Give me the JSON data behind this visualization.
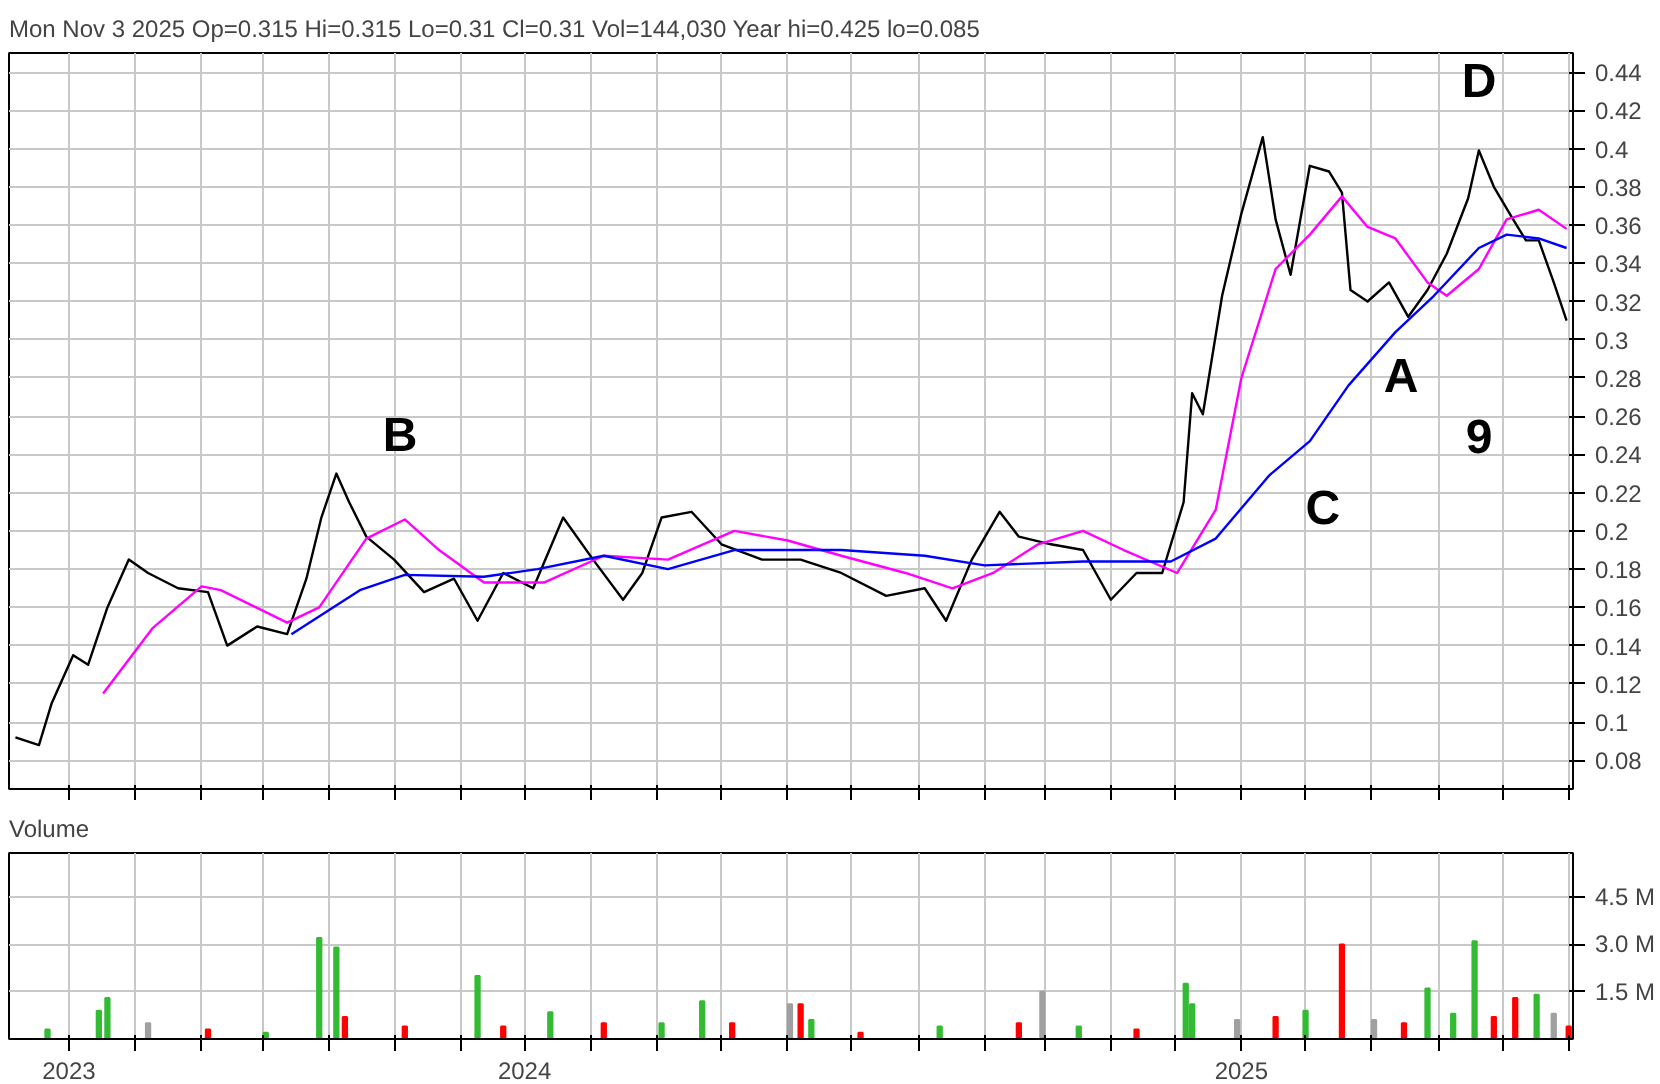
{
  "chart_data": [
    {
      "type": "line",
      "title": "Mon Nov  3 2025  Op=0.315  Hi=0.315  Lo=0.31  Cl=0.31  Vol=144,030  Year hi=0.425  lo=0.085",
      "xlim": [
        "2023-11-03",
        "2025-11-03"
      ],
      "ylim": [
        0.065,
        0.45
      ],
      "xticks": [
        {
          "value": "2023-12-01",
          "label": null
        },
        {
          "value": "2024-01-01",
          "label": null
        },
        {
          "value": "2024-02-01",
          "label": null
        },
        {
          "value": "2024-03-01",
          "label": null
        },
        {
          "value": "2024-04-01",
          "label": null
        },
        {
          "value": "2024-05-01",
          "label": null
        },
        {
          "value": "2024-06-01",
          "label": null
        },
        {
          "value": "2024-07-01",
          "label": null
        },
        {
          "value": "2024-08-01",
          "label": null
        },
        {
          "value": "2024-09-01",
          "label": null
        },
        {
          "value": "2024-10-01",
          "label": null
        },
        {
          "value": "2024-11-01",
          "label": null
        },
        {
          "value": "2024-12-01",
          "label": null
        },
        {
          "value": "2025-01-01",
          "label": null
        },
        {
          "value": "2025-02-01",
          "label": null
        },
        {
          "value": "2025-03-01",
          "label": null
        },
        {
          "value": "2025-04-01",
          "label": null
        },
        {
          "value": "2025-05-01",
          "label": null
        },
        {
          "value": "2025-06-01",
          "label": null
        },
        {
          "value": "2025-07-01",
          "label": null
        },
        {
          "value": "2025-08-01",
          "label": null
        },
        {
          "value": "2025-09-01",
          "label": null
        },
        {
          "value": "2025-10-01",
          "label": null
        },
        {
          "value": "2025-11-01",
          "label": null
        }
      ],
      "yticks": [
        0.08,
        0.1,
        0.12,
        0.14,
        0.16,
        0.18,
        0.2,
        0.22,
        0.24,
        0.26,
        0.28,
        0.3,
        0.32,
        0.34,
        0.36,
        0.38,
        0.4,
        0.42,
        0.44
      ],
      "grid": true,
      "tick_labels": "y",
      "annotations": [
        "B",
        "C",
        "A",
        "9",
        "D"
      ],
      "series": [
        {
          "color": "#000000",
          "x": [
            "2023-11-06",
            "2023-11-17",
            "2023-11-23",
            "2023-12-03",
            "2023-12-10",
            "2023-12-19",
            "2023-12-29",
            "2024-01-07",
            "2024-01-21",
            "2024-02-04",
            "2024-02-13",
            "2024-02-27",
            "2024-03-12",
            "2024-03-21",
            "2024-03-28",
            "2024-04-04",
            "2024-04-10",
            "2024-04-18",
            "2024-05-01",
            "2024-05-15",
            "2024-05-29",
            "2024-06-09",
            "2024-06-21",
            "2024-07-05",
            "2024-07-19",
            "2024-08-02",
            "2024-08-16",
            "2024-08-25",
            "2024-09-03",
            "2024-09-17",
            "2024-10-01",
            "2024-10-20",
            "2024-11-07",
            "2024-11-26",
            "2024-12-17",
            "2025-01-04",
            "2025-01-14",
            "2025-01-26",
            "2025-02-08",
            "2025-02-17",
            "2025-03-04",
            "2025-03-19",
            "2025-04-01",
            "2025-04-13",
            "2025-04-25",
            "2025-05-05",
            "2025-05-09",
            "2025-05-14",
            "2025-05-23",
            "2025-06-01",
            "2025-06-11",
            "2025-06-17",
            "2025-06-24",
            "2025-07-03",
            "2025-07-12",
            "2025-07-18",
            "2025-07-22",
            "2025-07-30",
            "2025-08-09",
            "2025-08-18",
            "2025-08-27",
            "2025-09-05",
            "2025-09-15",
            "2025-09-20",
            "2025-09-27",
            "2025-10-06",
            "2025-10-12",
            "2025-10-18",
            "2025-10-25",
            "2025-10-31"
          ],
          "values": [
            0.092,
            0.088,
            0.11,
            0.135,
            0.13,
            0.16,
            0.185,
            0.178,
            0.17,
            0.168,
            0.14,
            0.15,
            0.146,
            0.175,
            0.207,
            0.23,
            0.215,
            0.197,
            0.185,
            0.168,
            0.175,
            0.153,
            0.178,
            0.17,
            0.207,
            0.185,
            0.164,
            0.178,
            0.207,
            0.21,
            0.193,
            0.185,
            0.185,
            0.178,
            0.166,
            0.17,
            0.153,
            0.185,
            0.21,
            0.197,
            0.193,
            0.19,
            0.164,
            0.178,
            0.178,
            0.215,
            0.272,
            0.261,
            0.323,
            0.366,
            0.406,
            0.363,
            0.334,
            0.391,
            0.388,
            0.377,
            0.326,
            0.32,
            0.33,
            0.312,
            0.326,
            0.345,
            0.374,
            0.399,
            0.38,
            0.363,
            0.352,
            0.352,
            0.33,
            0.31
          ]
        },
        {
          "color": "#ff00ff",
          "x": [
            "2023-12-17",
            "2024-01-09",
            "2024-02-01",
            "2024-02-10",
            "2024-03-12",
            "2024-03-27",
            "2024-04-18",
            "2024-05-06",
            "2024-05-22",
            "2024-06-12",
            "2024-07-10",
            "2024-08-07",
            "2024-09-06",
            "2024-10-07",
            "2024-11-01",
            "2024-11-26",
            "2024-12-26",
            "2025-01-17",
            "2025-02-05",
            "2025-02-26",
            "2025-03-19",
            "2025-04-07",
            "2025-05-02",
            "2025-05-20",
            "2025-06-01",
            "2025-06-17",
            "2025-07-03",
            "2025-07-18",
            "2025-07-30",
            "2025-08-12",
            "2025-08-27",
            "2025-09-05",
            "2025-09-20",
            "2025-10-03",
            "2025-10-18",
            "2025-10-31"
          ],
          "values": [
            0.115,
            0.149,
            0.171,
            0.169,
            0.152,
            0.16,
            0.196,
            0.206,
            0.19,
            0.173,
            0.173,
            0.187,
            0.185,
            0.2,
            0.195,
            0.187,
            0.178,
            0.17,
            0.178,
            0.193,
            0.2,
            0.19,
            0.178,
            0.211,
            0.28,
            0.337,
            0.355,
            0.375,
            0.359,
            0.353,
            0.33,
            0.323,
            0.337,
            0.363,
            0.368,
            0.358
          ]
        },
        {
          "color": "#0000ff",
          "x": [
            "2024-03-14",
            "2024-04-15",
            "2024-05-06",
            "2024-06-12",
            "2024-07-07",
            "2024-08-07",
            "2024-09-06",
            "2024-10-07",
            "2024-11-26",
            "2025-01-04",
            "2025-02-01",
            "2025-03-19",
            "2025-04-29",
            "2025-05-20",
            "2025-06-14",
            "2025-07-03",
            "2025-07-21",
            "2025-08-12",
            "2025-08-30",
            "2025-09-20",
            "2025-10-03",
            "2025-10-18",
            "2025-10-31"
          ],
          "values": [
            0.146,
            0.169,
            0.177,
            0.176,
            0.18,
            0.187,
            0.18,
            0.19,
            0.19,
            0.187,
            0.182,
            0.184,
            0.184,
            0.196,
            0.229,
            0.247,
            0.276,
            0.304,
            0.323,
            0.348,
            0.355,
            0.353,
            0.348
          ]
        }
      ]
    },
    {
      "type": "bar",
      "title": "Volume",
      "xlim": [
        "2023-11-03",
        "2025-11-03"
      ],
      "ylim": [
        0,
        5.9
      ],
      "xticks": [
        {
          "value": "2023-12-01",
          "label": "2023"
        },
        {
          "value": "2024-01-01",
          "label": null
        },
        {
          "value": "2024-02-01",
          "label": null
        },
        {
          "value": "2024-03-01",
          "label": null
        },
        {
          "value": "2024-04-01",
          "label": null
        },
        {
          "value": "2024-05-01",
          "label": null
        },
        {
          "value": "2024-06-01",
          "label": null
        },
        {
          "value": "2024-07-01",
          "label": "2024"
        },
        {
          "value": "2024-08-01",
          "label": null
        },
        {
          "value": "2024-09-01",
          "label": null
        },
        {
          "value": "2024-10-01",
          "label": null
        },
        {
          "value": "2024-11-01",
          "label": null
        },
        {
          "value": "2024-12-01",
          "label": null
        },
        {
          "value": "2025-01-01",
          "label": null
        },
        {
          "value": "2025-02-01",
          "label": null
        },
        {
          "value": "2025-03-01",
          "label": null
        },
        {
          "value": "2025-04-01",
          "label": null
        },
        {
          "value": "2025-05-01",
          "label": null
        },
        {
          "value": "2025-06-01",
          "label": "2025"
        },
        {
          "value": "2025-07-01",
          "label": null
        },
        {
          "value": "2025-08-01",
          "label": null
        },
        {
          "value": "2025-09-01",
          "label": null
        },
        {
          "value": "2025-10-01",
          "label": null
        },
        {
          "value": "2025-11-01",
          "label": null
        }
      ],
      "yticks": [
        {
          "value": 1.5,
          "label": "1.5 M"
        },
        {
          "value": 3.0,
          "label": "3.0 M"
        },
        {
          "value": 4.5,
          "label": "4.5 M"
        }
      ],
      "grid": true,
      "x": [
        "2023-11-21",
        "2023-12-15",
        "2023-12-19",
        "2024-01-07",
        "2024-02-04",
        "2024-03-02",
        "2024-03-27",
        "2024-04-04",
        "2024-04-08",
        "2024-05-06",
        "2024-06-09",
        "2024-06-21",
        "2024-07-13",
        "2024-08-07",
        "2024-09-03",
        "2024-09-22",
        "2024-10-06",
        "2024-11-02",
        "2024-11-07",
        "2024-11-12",
        "2024-12-05",
        "2025-01-11",
        "2025-02-17",
        "2025-02-28",
        "2025-03-17",
        "2025-04-13",
        "2025-05-06",
        "2025-05-09",
        "2025-05-30",
        "2025-06-17",
        "2025-07-01",
        "2025-07-18",
        "2025-08-02",
        "2025-08-16",
        "2025-08-27",
        "2025-09-08",
        "2025-09-18",
        "2025-09-27",
        "2025-10-07",
        "2025-10-17",
        "2025-10-25",
        "2025-11-01"
      ],
      "values": [
        0.3,
        0.9,
        1.3,
        0.5,
        0.3,
        0.2,
        3.2,
        2.9,
        0.7,
        0.4,
        2.0,
        0.4,
        0.85,
        0.5,
        0.5,
        1.2,
        0.5,
        1.1,
        1.1,
        0.6,
        0.2,
        0.4,
        0.5,
        1.5,
        0.4,
        0.3,
        1.75,
        1.1,
        0.6,
        0.7,
        0.9,
        3.0,
        0.6,
        0.5,
        1.6,
        0.8,
        3.1,
        0.7,
        1.3,
        1.4,
        0.8,
        0.4
      ],
      "colors": [
        "#33bb33",
        "#33bb33",
        "#33bb33",
        "#a0a0a0",
        "#ff0000",
        "#33bb33",
        "#33bb33",
        "#33bb33",
        "#ff0000",
        "#ff0000",
        "#33bb33",
        "#ff0000",
        "#33bb33",
        "#ff0000",
        "#33bb33",
        "#33bb33",
        "#ff0000",
        "#a0a0a0",
        "#ff0000",
        "#33bb33",
        "#ff0000",
        "#33bb33",
        "#ff0000",
        "#a0a0a0",
        "#33bb33",
        "#ff0000",
        "#33bb33",
        "#33bb33",
        "#a0a0a0",
        "#ff0000",
        "#33bb33",
        "#ff0000",
        "#a0a0a0",
        "#ff0000",
        "#33bb33",
        "#33bb33",
        "#33bb33",
        "#ff0000",
        "#ff0000",
        "#33bb33",
        "#a0a0a0",
        "#ff0000"
      ]
    }
  ]
}
